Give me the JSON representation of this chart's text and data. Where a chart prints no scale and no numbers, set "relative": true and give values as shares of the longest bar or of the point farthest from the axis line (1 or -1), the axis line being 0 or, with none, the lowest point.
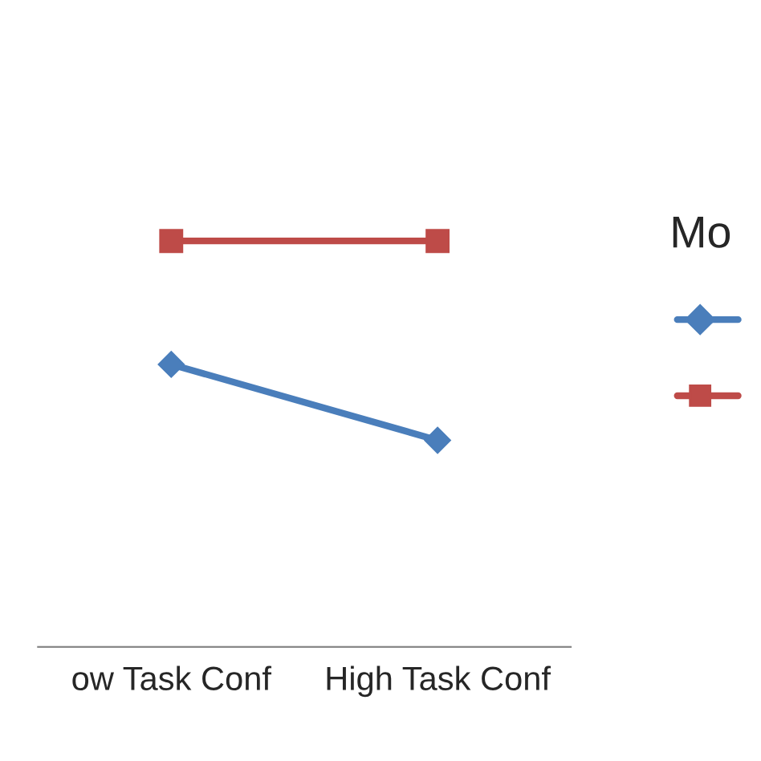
{
  "chart_data": {
    "type": "line",
    "categories": [
      "ow Task Conf",
      "High Task Conf"
    ],
    "relative": true,
    "legend_title": "Mo",
    "series": [
      {
        "color": "#4a7ebb",
        "marker": "diamond",
        "values": [
          0.696,
          0.509
        ]
      },
      {
        "color": "#be4b48",
        "marker": "square",
        "values": [
          1,
          1
        ]
      }
    ]
  }
}
